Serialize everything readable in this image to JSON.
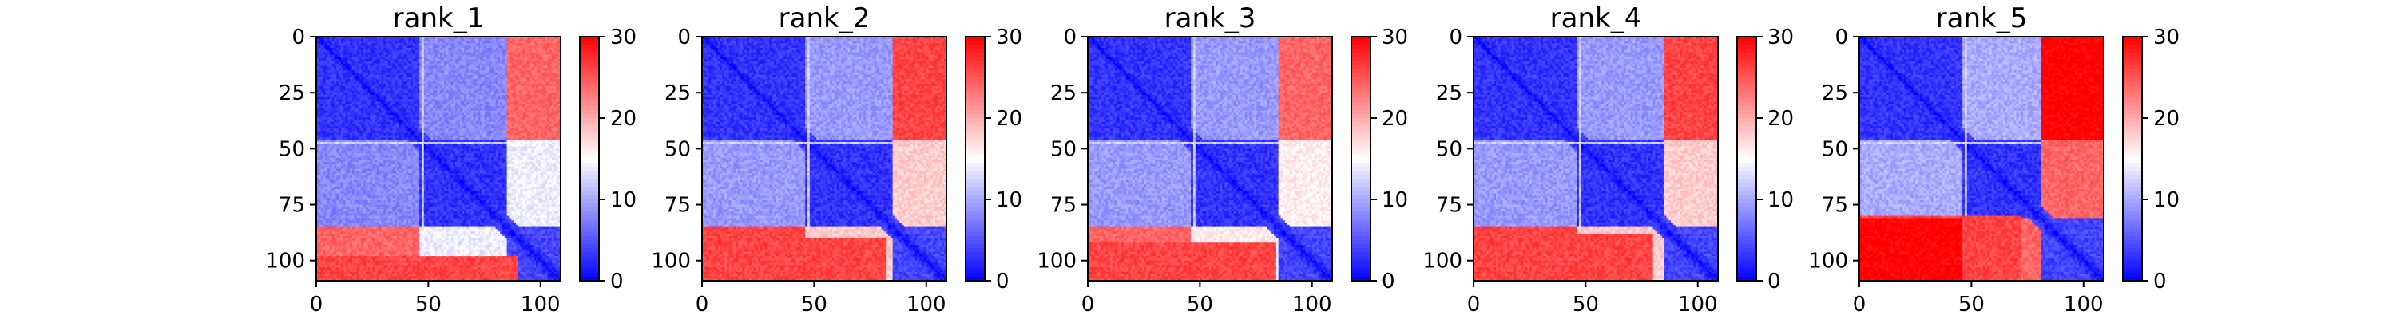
{
  "chart_data": [
    {
      "type": "heatmap",
      "title": "rank_1",
      "xlabel": "",
      "ylabel": "",
      "n_residues": 109,
      "xlim": [
        0,
        109
      ],
      "ylim": [
        109,
        0
      ],
      "x_ticks": [
        0,
        50,
        100
      ],
      "y_ticks": [
        0,
        25,
        50,
        75,
        100
      ],
      "colorbar": {
        "range": [
          0,
          30
        ],
        "ticks": [
          0,
          10,
          20,
          30
        ],
        "colormap": "bwr",
        "low_color": "#0000ff",
        "mid_color": "#ffffff",
        "high_color": "#ff0000"
      },
      "domains": [
        [
          0,
          45
        ],
        [
          46,
          84
        ],
        [
          85,
          108
        ]
      ],
      "inter_domain_pae": [
        [
          3,
          8,
          24
        ],
        [
          8,
          3,
          14
        ],
        [
          24,
          14,
          4
        ]
      ],
      "c_terminal_band_start": 98
    },
    {
      "type": "heatmap",
      "title": "rank_2",
      "xlabel": "",
      "ylabel": "",
      "n_residues": 109,
      "xlim": [
        0,
        109
      ],
      "ylim": [
        109,
        0
      ],
      "x_ticks": [
        0,
        50,
        100
      ],
      "y_ticks": [
        0,
        25,
        50,
        75,
        100
      ],
      "colorbar": {
        "range": [
          0,
          30
        ],
        "ticks": [
          0,
          10,
          20,
          30
        ],
        "colormap": "bwr",
        "low_color": "#0000ff",
        "mid_color": "#ffffff",
        "high_color": "#ff0000"
      },
      "domains": [
        [
          0,
          45
        ],
        [
          46,
          84
        ],
        [
          85,
          108
        ]
      ],
      "inter_domain_pae": [
        [
          3,
          9,
          26
        ],
        [
          9,
          3,
          18
        ],
        [
          26,
          18,
          4
        ]
      ],
      "c_terminal_band_start": 90
    },
    {
      "type": "heatmap",
      "title": "rank_3",
      "xlabel": "",
      "ylabel": "",
      "n_residues": 109,
      "xlim": [
        0,
        109
      ],
      "ylim": [
        109,
        0
      ],
      "x_ticks": [
        0,
        50,
        100
      ],
      "y_ticks": [
        0,
        25,
        50,
        75,
        100
      ],
      "colorbar": {
        "range": [
          0,
          30
        ],
        "ticks": [
          0,
          10,
          20,
          30
        ],
        "colormap": "bwr",
        "low_color": "#0000ff",
        "mid_color": "#ffffff",
        "high_color": "#ff0000"
      },
      "domains": [
        [
          0,
          45
        ],
        [
          46,
          84
        ],
        [
          85,
          108
        ]
      ],
      "inter_domain_pae": [
        [
          3,
          9,
          24
        ],
        [
          9,
          3,
          16
        ],
        [
          24,
          16,
          4
        ]
      ],
      "c_terminal_band_start": 92
    },
    {
      "type": "heatmap",
      "title": "rank_4",
      "xlabel": "",
      "ylabel": "",
      "n_residues": 109,
      "xlim": [
        0,
        109
      ],
      "ylim": [
        109,
        0
      ],
      "x_ticks": [
        0,
        50,
        100
      ],
      "y_ticks": [
        0,
        25,
        50,
        75,
        100
      ],
      "colorbar": {
        "range": [
          0,
          30
        ],
        "ticks": [
          0,
          10,
          20,
          30
        ],
        "colormap": "bwr",
        "low_color": "#0000ff",
        "mid_color": "#ffffff",
        "high_color": "#ff0000"
      },
      "domains": [
        [
          0,
          45
        ],
        [
          46,
          84
        ],
        [
          85,
          108
        ]
      ],
      "inter_domain_pae": [
        [
          3,
          9,
          26
        ],
        [
          9,
          3,
          18
        ],
        [
          26,
          18,
          4
        ]
      ],
      "c_terminal_band_start": 88
    },
    {
      "type": "heatmap",
      "title": "rank_5",
      "xlabel": "",
      "ylabel": "",
      "n_residues": 109,
      "xlim": [
        0,
        109
      ],
      "ylim": [
        109,
        0
      ],
      "x_ticks": [
        0,
        50,
        100
      ],
      "y_ticks": [
        0,
        25,
        50,
        75,
        100
      ],
      "colorbar": {
        "range": [
          0,
          30
        ],
        "ticks": [
          0,
          10,
          20,
          30
        ],
        "colormap": "bwr",
        "low_color": "#0000ff",
        "mid_color": "#ffffff",
        "high_color": "#ff0000"
      },
      "domains": [
        [
          0,
          45
        ],
        [
          46,
          80
        ],
        [
          81,
          108
        ]
      ],
      "inter_domain_pae": [
        [
          3,
          10,
          30
        ],
        [
          10,
          3,
          24
        ],
        [
          30,
          24,
          4
        ]
      ],
      "c_terminal_band_start": 80
    }
  ]
}
